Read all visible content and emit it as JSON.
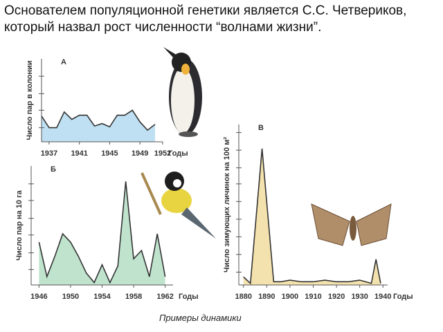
{
  "text": "Основателем популяционной генетики является С.С. Четвериков, который назвал рост численности “волнами жизни”.",
  "caption": "Примеры динамики",
  "chart_data": [
    {
      "type": "area",
      "label": "А",
      "ylabel": "Число пар в колонии",
      "xlabel": "Годы",
      "color": "#bfe0f2",
      "x": [
        1936,
        1937,
        1938,
        1939,
        1940,
        1941,
        1942,
        1943,
        1944,
        1945,
        1946,
        1947,
        1948,
        1949,
        1950,
        1951
      ],
      "values": [
        31,
        17,
        17,
        36,
        27,
        32,
        32,
        19,
        22,
        18,
        32,
        32,
        38,
        24,
        14,
        21
      ],
      "xlim": [
        1936,
        1952
      ],
      "xticks": [
        1937,
        1941,
        1945,
        1949,
        1952
      ],
      "ylim": [
        0,
        100
      ],
      "yticks": [
        17,
        38,
        58,
        79
      ]
    },
    {
      "type": "area",
      "label": "Б",
      "ylabel": "Число пар на 10 га",
      "xlabel": "Годы",
      "color": "#bfe3cd",
      "x": [
        1946,
        1947,
        1948,
        1949,
        1950,
        1951,
        1952,
        1953,
        1954,
        1955,
        1956,
        1957,
        1958,
        1959,
        1960,
        1961,
        1962
      ],
      "values": [
        36,
        7,
        24,
        43,
        36,
        24,
        10,
        2,
        17,
        2,
        16,
        87,
        22,
        29,
        7,
        43,
        7
      ],
      "xlim": [
        1945,
        1963
      ],
      "xticks": [
        1946,
        1950,
        1954,
        1958,
        1962
      ],
      "ylim": [
        0,
        100
      ],
      "yticks": [
        13,
        27,
        42,
        56,
        71,
        85
      ]
    },
    {
      "type": "area",
      "label": "В",
      "ylabel": "Число зимующих личинок на 100 м²",
      "xlabel": "Годы",
      "color": "#f3e2ad",
      "x": [
        1880,
        1883,
        1888,
        1893,
        1896,
        1900,
        1905,
        1910,
        1915,
        1920,
        1925,
        1930,
        1935,
        1937,
        1939
      ],
      "values": [
        5,
        1,
        85,
        2,
        2,
        3,
        2,
        2,
        3,
        2,
        2,
        3,
        1,
        16,
        1
      ],
      "xlim": [
        1878,
        1942
      ],
      "xticks": [
        1880,
        1890,
        1900,
        1910,
        1920,
        1930,
        1940
      ],
      "ylim": [
        0,
        100
      ],
      "yticks": [
        8,
        19,
        30,
        41,
        52,
        63,
        73,
        84,
        95
      ]
    }
  ]
}
